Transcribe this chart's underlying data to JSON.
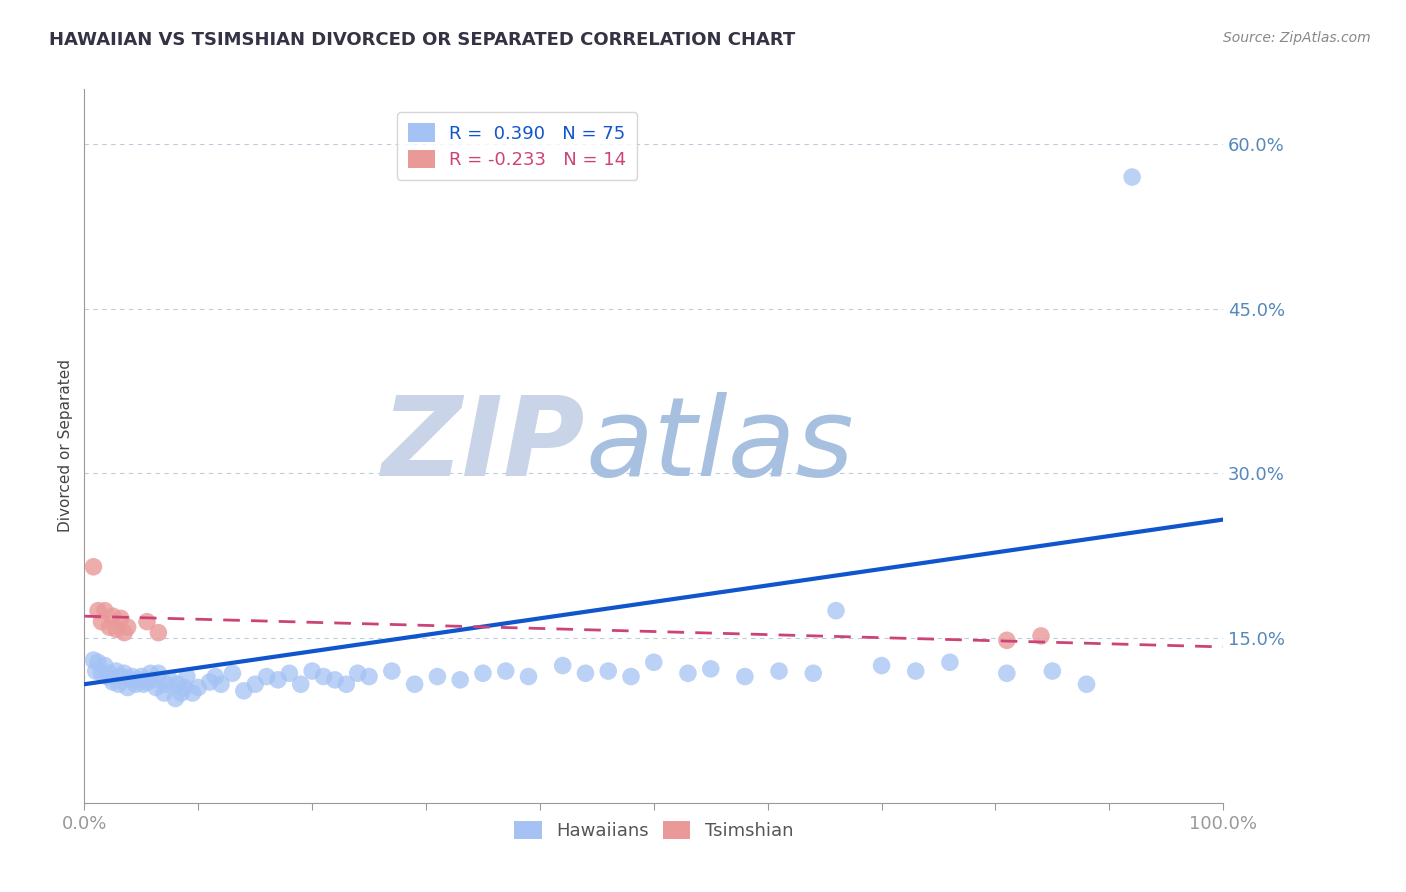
{
  "title": "HAWAIIAN VS TSIMSHIAN DIVORCED OR SEPARATED CORRELATION CHART",
  "source": "Source: ZipAtlas.com",
  "ylabel": "Divorced or Separated",
  "hawaiian_R": 0.39,
  "hawaiian_N": 75,
  "tsimshian_R": -0.233,
  "tsimshian_N": 14,
  "hawaiian_color": "#a4c2f4",
  "tsimshian_color": "#ea9999",
  "hawaiian_line_color": "#1155cc",
  "tsimshian_line_color": "#cc4477",
  "watermark_zip_color": "#c9d4e8",
  "watermark_atlas_color": "#a8c0e0",
  "background_color": "#ffffff",
  "grid_color": "#bbccdd",
  "xlim": [
    0.0,
    1.0
  ],
  "ylim": [
    0.0,
    0.65
  ],
  "ytick_vals": [
    0.0,
    0.15,
    0.3,
    0.45,
    0.6
  ],
  "haw_line_x0": 0.0,
  "haw_line_y0": 0.108,
  "haw_line_x1": 1.0,
  "haw_line_y1": 0.258,
  "tsi_line_x0": 0.0,
  "tsi_line_y0": 0.17,
  "tsi_line_x1": 1.0,
  "tsi_line_y1": 0.142,
  "haw_x": [
    0.008,
    0.01,
    0.012,
    0.015,
    0.018,
    0.02,
    0.022,
    0.025,
    0.028,
    0.03,
    0.032,
    0.035,
    0.038,
    0.04,
    0.042,
    0.045,
    0.048,
    0.05,
    0.052,
    0.055,
    0.058,
    0.06,
    0.063,
    0.065,
    0.07,
    0.072,
    0.075,
    0.08,
    0.082,
    0.085,
    0.088,
    0.09,
    0.095,
    0.1,
    0.11,
    0.115,
    0.12,
    0.13,
    0.14,
    0.15,
    0.16,
    0.17,
    0.18,
    0.19,
    0.2,
    0.21,
    0.22,
    0.23,
    0.24,
    0.25,
    0.27,
    0.29,
    0.31,
    0.33,
    0.35,
    0.37,
    0.39,
    0.42,
    0.44,
    0.46,
    0.48,
    0.5,
    0.53,
    0.55,
    0.58,
    0.61,
    0.64,
    0.66,
    0.7,
    0.73,
    0.76,
    0.81,
    0.85,
    0.88,
    0.92
  ],
  "haw_y": [
    0.13,
    0.12,
    0.128,
    0.118,
    0.125,
    0.115,
    0.118,
    0.11,
    0.12,
    0.108,
    0.115,
    0.118,
    0.105,
    0.112,
    0.115,
    0.108,
    0.112,
    0.115,
    0.108,
    0.11,
    0.118,
    0.112,
    0.105,
    0.118,
    0.1,
    0.108,
    0.112,
    0.095,
    0.108,
    0.1,
    0.105,
    0.115,
    0.1,
    0.105,
    0.11,
    0.115,
    0.108,
    0.118,
    0.102,
    0.108,
    0.115,
    0.112,
    0.118,
    0.108,
    0.12,
    0.115,
    0.112,
    0.108,
    0.118,
    0.115,
    0.12,
    0.108,
    0.115,
    0.112,
    0.118,
    0.12,
    0.115,
    0.125,
    0.118,
    0.12,
    0.115,
    0.128,
    0.118,
    0.122,
    0.115,
    0.12,
    0.118,
    0.175,
    0.125,
    0.12,
    0.128,
    0.118,
    0.12,
    0.108,
    0.57
  ],
  "tsi_x": [
    0.008,
    0.012,
    0.015,
    0.018,
    0.022,
    0.025,
    0.028,
    0.032,
    0.035,
    0.038,
    0.055,
    0.065,
    0.81,
    0.84
  ],
  "tsi_y": [
    0.215,
    0.175,
    0.165,
    0.175,
    0.16,
    0.17,
    0.158,
    0.168,
    0.155,
    0.16,
    0.165,
    0.155,
    0.148,
    0.152
  ]
}
